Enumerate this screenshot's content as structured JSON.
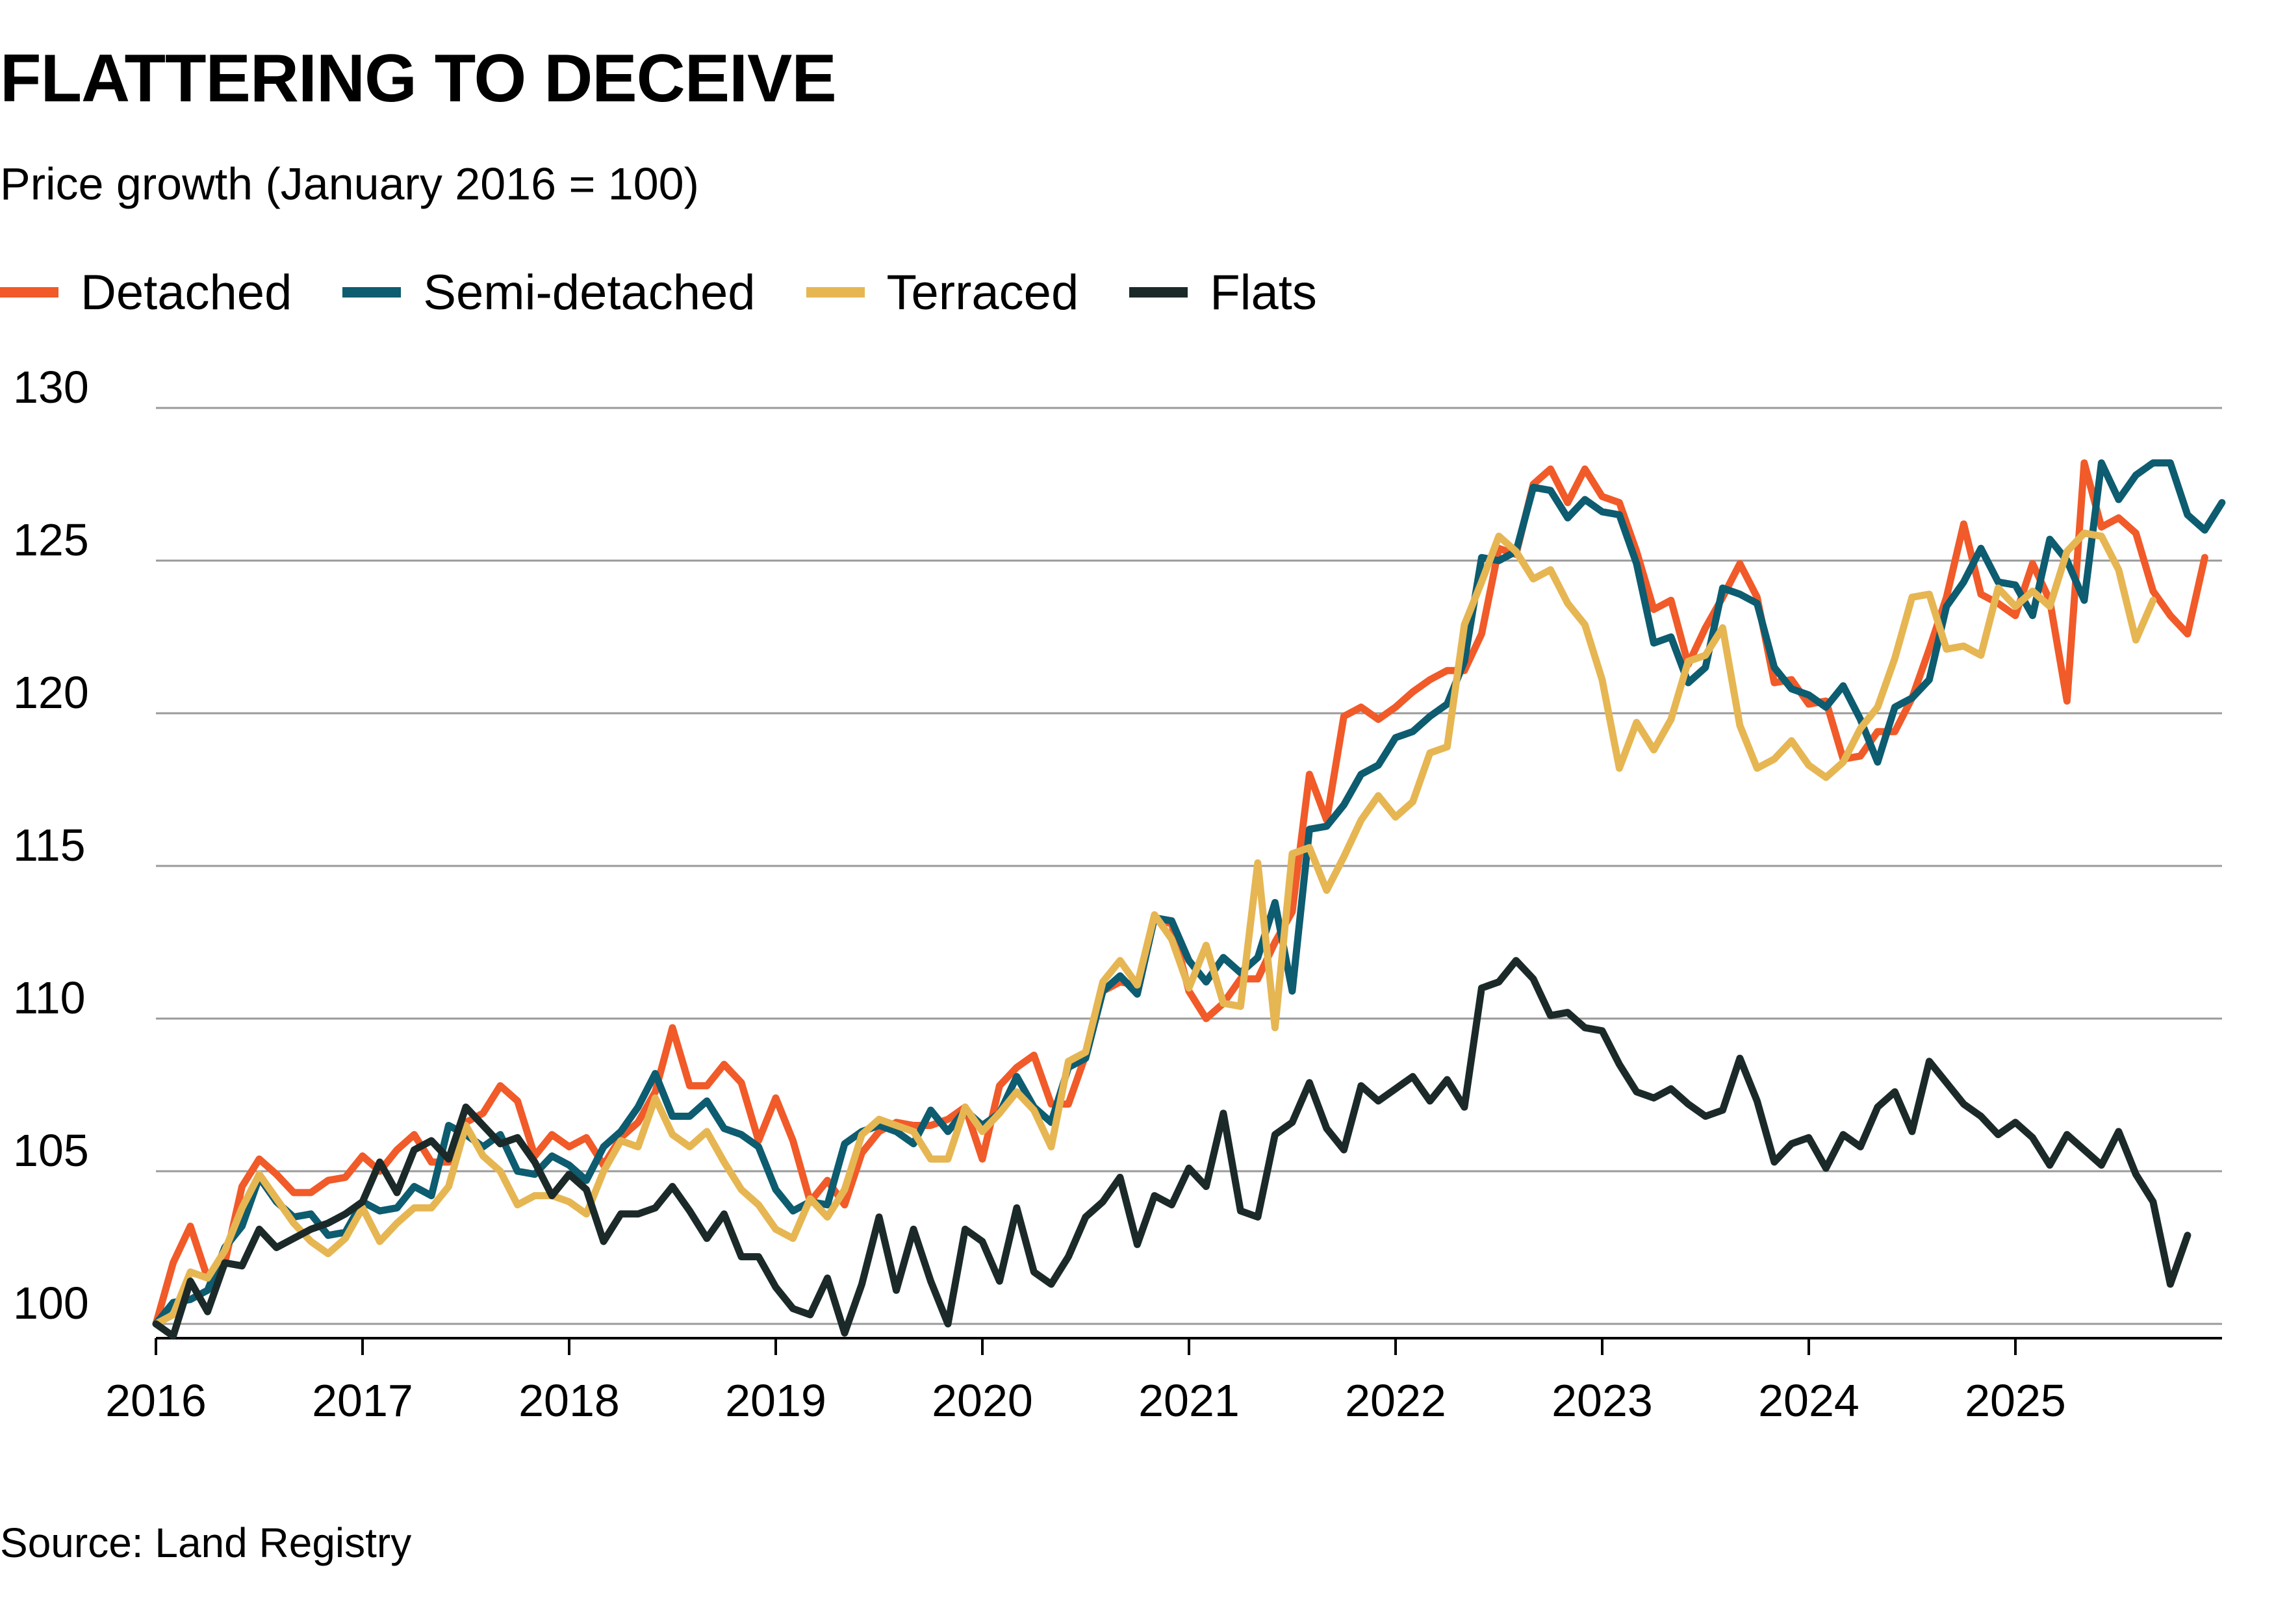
{
  "chart_data": {
    "type": "line",
    "title": "FLATTERING TO DECEIVE",
    "subtitle": "Price growth (January 2016 = 100)",
    "source": "Source: Land Registry",
    "ylim": [
      100,
      130
    ],
    "yticks": [
      100,
      105,
      110,
      115,
      120,
      125,
      130
    ],
    "ytick_labels": [
      "100",
      "105",
      "110",
      "115",
      "120",
      "125",
      "130"
    ],
    "xlim": [
      2016,
      2026
    ],
    "xticks": [
      2016,
      2017,
      2018,
      2019,
      2020,
      2021,
      2022,
      2023,
      2024,
      2025
    ],
    "xtick_labels": [
      "2016",
      "2017",
      "2018",
      "2019",
      "2020",
      "2021",
      "2022",
      "2023",
      "2024",
      "2025"
    ],
    "grid": true,
    "legend_position": "top-left",
    "x_start": 2016.0,
    "x_step": 0.08333,
    "series": [
      {
        "name": "Detached",
        "color": "#f15a29",
        "values": [
          100,
          102,
          103.2,
          101.5,
          102,
          104.5,
          105.4,
          104.9,
          104.3,
          104.3,
          104.7,
          104.8,
          105.5,
          105,
          105.7,
          106.2,
          105.3,
          105.3,
          106.6,
          106.9,
          107.8,
          107.3,
          105.5,
          106.2,
          105.8,
          106.1,
          105.2,
          106.1,
          106.6,
          107.6,
          109.7,
          107.8,
          107.8,
          108.5,
          107.9,
          106,
          107.4,
          106,
          104,
          104.7,
          103.9,
          105.6,
          106.3,
          106.6,
          106.5,
          106.5,
          106.7,
          107.1,
          105.4,
          107.8,
          108.4,
          108.8,
          107.2,
          107.2,
          108.8,
          110.9,
          111.2,
          111.1,
          113.3,
          113.1,
          110.9,
          110,
          110.5,
          111.3,
          111.3,
          112.5,
          113.5,
          118,
          116.5,
          119.9,
          120.2,
          119.8,
          120.2,
          120.7,
          121.1,
          121.4,
          121.4,
          122.6,
          125.4,
          125.2,
          127.5,
          128,
          126.9,
          128,
          127.1,
          126.9,
          125.3,
          123.4,
          123.7,
          121.6,
          122.8,
          123.8,
          124.9,
          123.8,
          121,
          121.1,
          120.3,
          120.4,
          118.5,
          118.6,
          119.4,
          119.4,
          120.5,
          122.1,
          123.8,
          126.2,
          123.9,
          123.6,
          123.2,
          124.9,
          123.7,
          120.4,
          128.2,
          126.1,
          126.4,
          125.9,
          124,
          123.2,
          122.6,
          125.1
        ]
      },
      {
        "name": "Semi-detached",
        "color": "#0d5c70",
        "values": [
          100,
          100.7,
          100.8,
          101.1,
          102.5,
          103.2,
          104.8,
          104,
          103.5,
          103.6,
          102.9,
          103,
          104,
          103.7,
          103.8,
          104.5,
          104.2,
          106.5,
          106.2,
          105.8,
          106.2,
          105,
          104.9,
          105.5,
          105.2,
          104.7,
          105.8,
          106.3,
          107.1,
          108.2,
          106.8,
          106.8,
          107.3,
          106.4,
          106.2,
          105.8,
          104.4,
          103.7,
          104,
          103.9,
          105.9,
          106.3,
          106.5,
          106.3,
          105.9,
          107,
          106.3,
          107,
          106.5,
          106.9,
          108.1,
          107.1,
          106.6,
          108.4,
          108.7,
          110.9,
          111.4,
          110.8,
          113.3,
          113.2,
          111.9,
          111.2,
          112,
          111.5,
          112,
          113.8,
          110.9,
          116.2,
          116.3,
          117,
          118,
          118.3,
          119.2,
          119.4,
          119.9,
          120.3,
          121.7,
          125.1,
          125,
          125.3,
          127.4,
          127.3,
          126.4,
          127,
          126.6,
          126.5,
          124.9,
          122.3,
          122.5,
          121,
          121.5,
          124.1,
          123.9,
          123.6,
          121.5,
          120.8,
          120.6,
          120.2,
          120.9,
          119.8,
          118.4,
          120.2,
          120.5,
          121.1,
          123.5,
          124.3,
          125.4,
          124.3,
          124.2,
          123.2,
          125.7,
          125,
          123.7,
          128.2,
          127,
          127.8,
          128.2,
          128.2,
          126.5,
          126,
          126.9
        ]
      },
      {
        "name": "Terraced",
        "color": "#e6b653",
        "values": [
          100,
          100.3,
          101.7,
          101.5,
          102.4,
          103.8,
          104.9,
          104.1,
          103.3,
          102.7,
          102.3,
          102.8,
          103.8,
          102.7,
          103.3,
          103.8,
          103.8,
          104.5,
          106.5,
          105.5,
          105,
          103.9,
          104.2,
          104.2,
          104,
          103.6,
          105,
          106,
          105.8,
          107.4,
          106.2,
          105.8,
          106.3,
          105.3,
          104.4,
          103.9,
          103.1,
          102.8,
          104.1,
          103.5,
          104.4,
          106.2,
          106.7,
          106.5,
          106.3,
          105.4,
          105.4,
          107.1,
          106.3,
          106.9,
          107.6,
          107,
          105.8,
          108.6,
          108.9,
          111.2,
          111.9,
          111.1,
          113.4,
          112.6,
          111,
          112.4,
          110.5,
          110.4,
          115.1,
          109.7,
          115.4,
          115.6,
          114.2,
          115.3,
          116.5,
          117.3,
          116.6,
          117.1,
          118.7,
          118.9,
          122.9,
          124.3,
          125.8,
          125.3,
          124.4,
          124.7,
          123.6,
          122.9,
          121.1,
          118.2,
          119.7,
          118.8,
          119.8,
          121.7,
          121.9,
          122.8,
          119.6,
          118.2,
          118.5,
          119.1,
          118.3,
          117.9,
          118.4,
          119.5,
          120.2,
          121.8,
          123.8,
          123.9,
          122.1,
          122.2,
          121.9,
          124.1,
          123.5,
          124,
          123.5,
          125.3,
          125.9,
          125.8,
          124.7,
          122.4,
          123.7
        ]
      },
      {
        "name": "Flats",
        "color": "#1b2a29",
        "values": [
          100,
          99.6,
          101.4,
          100.4,
          102,
          101.9,
          103.1,
          102.5,
          102.8,
          103.1,
          103.3,
          103.6,
          104,
          105.3,
          104.3,
          105.7,
          106,
          105.4,
          107.1,
          106.5,
          105.9,
          106.1,
          105.3,
          104.2,
          104.9,
          104.4,
          102.7,
          103.6,
          103.6,
          103.8,
          104.5,
          103.7,
          102.8,
          103.6,
          102.2,
          102.2,
          101.2,
          100.5,
          100.3,
          101.5,
          99.7,
          101.3,
          103.5,
          101.1,
          103.1,
          101.4,
          100,
          103.1,
          102.7,
          101.4,
          103.8,
          101.7,
          101.3,
          102.2,
          103.5,
          104,
          104.8,
          102.6,
          104.2,
          103.9,
          105.1,
          104.5,
          106.9,
          103.7,
          103.5,
          106.2,
          106.6,
          107.9,
          106.4,
          105.7,
          107.8,
          107.3,
          107.7,
          108.1,
          107.3,
          108,
          107.1,
          111,
          111.2,
          111.9,
          111.3,
          110.1,
          110.2,
          109.7,
          109.6,
          108.5,
          107.6,
          107.4,
          107.7,
          107.2,
          106.8,
          107,
          108.7,
          107.3,
          105.3,
          105.9,
          106.1,
          105.1,
          106.2,
          105.8,
          107.1,
          107.6,
          106.3,
          108.6,
          107.9,
          107.2,
          106.8,
          106.2,
          106.6,
          106.1,
          105.2,
          106.2,
          105.7,
          105.2,
          106.3,
          104.9,
          104,
          101.3,
          102.9
        ]
      }
    ]
  }
}
